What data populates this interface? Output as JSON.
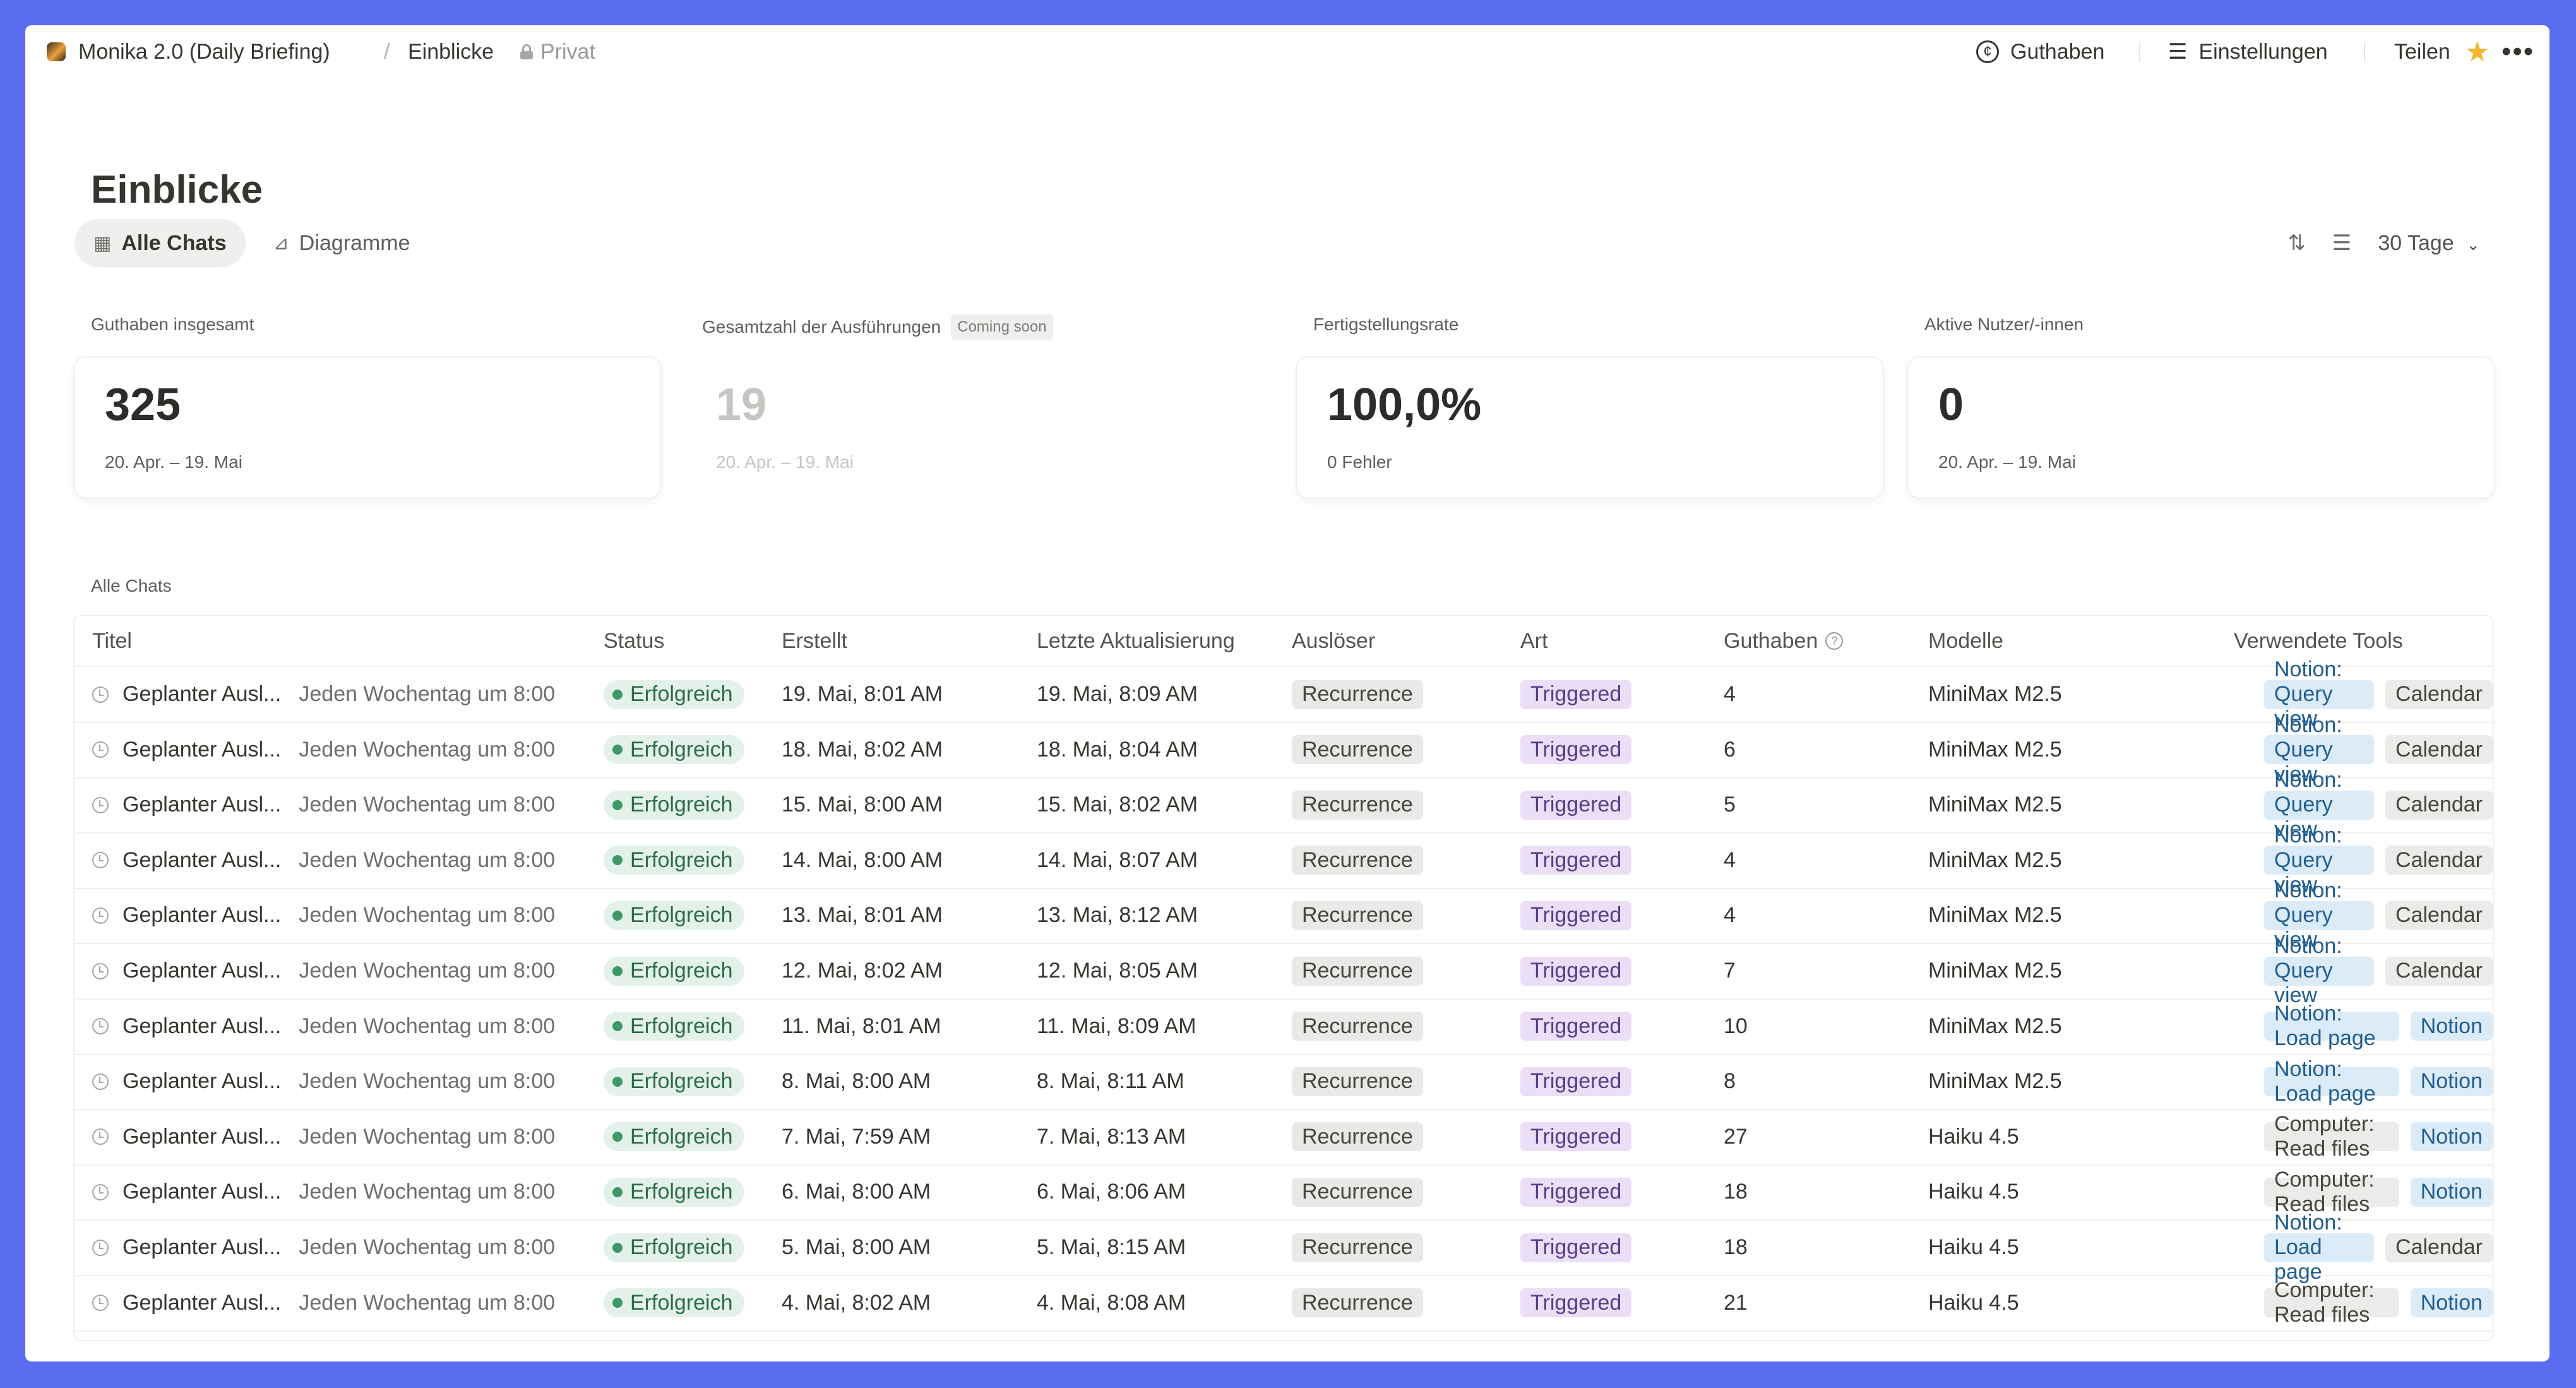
{
  "topbar": {
    "workspace": "Monika 2.0 (Daily Briefing)",
    "separator": "/",
    "page": "Einblicke",
    "privacy": "Privat",
    "credits": "Guthaben",
    "settings": "Einstellungen",
    "share": "Teilen"
  },
  "title": "Einblicke",
  "tabs": {
    "all_chats": "Alle Chats",
    "charts": "Diagramme"
  },
  "range": "30 Tage",
  "stats": {
    "credits": {
      "label": "Guthaben insgesamt",
      "value": "325",
      "sub": "20. Apr. – 19. Mai"
    },
    "runs": {
      "label": "Gesamtzahl der Ausführungen",
      "badge": "Coming soon",
      "value": "19",
      "sub": "20. Apr. – 19. Mai"
    },
    "completion": {
      "label": "Fertigstellungsrate",
      "value": "100,0%",
      "sub": "0 Fehler"
    },
    "users": {
      "label": "Aktive Nutzer/-innen",
      "value": "0",
      "sub": "20. Apr. – 19. Mai"
    }
  },
  "section_label": "Alle Chats",
  "columns": {
    "title": "Titel",
    "status": "Status",
    "created": "Erstellt",
    "updated": "Letzte Aktualisierung",
    "trigger": "Auslöser",
    "type": "Art",
    "credits": "Guthaben",
    "models": "Modelle",
    "tools": "Verwendete Tools"
  },
  "rows": [
    {
      "title": "Geplanter Ausl...",
      "desc": "Jeden Wochentag um 8:00",
      "status": "Erfolgreich",
      "created": "19. Mai, 8:01 AM",
      "updated": "19. Mai, 8:09 AM",
      "trigger": "Recurrence",
      "type": "Triggered",
      "credits": "4",
      "model": "MiniMax M2.5",
      "tool1": "Notion: Query view",
      "tool1_color": "blue",
      "tool2": "Calendar"
    },
    {
      "title": "Geplanter Ausl...",
      "desc": "Jeden Wochentag um 8:00",
      "status": "Erfolgreich",
      "created": "18. Mai, 8:02 AM",
      "updated": "18. Mai, 8:04 AM",
      "trigger": "Recurrence",
      "type": "Triggered",
      "credits": "6",
      "model": "MiniMax M2.5",
      "tool1": "Notion: Query view",
      "tool1_color": "blue",
      "tool2": "Calendar"
    },
    {
      "title": "Geplanter Ausl...",
      "desc": "Jeden Wochentag um 8:00",
      "status": "Erfolgreich",
      "created": "15. Mai, 8:00 AM",
      "updated": "15. Mai, 8:02 AM",
      "trigger": "Recurrence",
      "type": "Triggered",
      "credits": "5",
      "model": "MiniMax M2.5",
      "tool1": "Notion: Query view",
      "tool1_color": "blue",
      "tool2": "Calendar"
    },
    {
      "title": "Geplanter Ausl...",
      "desc": "Jeden Wochentag um 8:00",
      "status": "Erfolgreich",
      "created": "14. Mai, 8:00 AM",
      "updated": "14. Mai, 8:07 AM",
      "trigger": "Recurrence",
      "type": "Triggered",
      "credits": "4",
      "model": "MiniMax M2.5",
      "tool1": "Notion: Query view",
      "tool1_color": "blue",
      "tool2": "Calendar"
    },
    {
      "title": "Geplanter Ausl...",
      "desc": "Jeden Wochentag um 8:00",
      "status": "Erfolgreich",
      "created": "13. Mai, 8:01 AM",
      "updated": "13. Mai, 8:12 AM",
      "trigger": "Recurrence",
      "type": "Triggered",
      "credits": "4",
      "model": "MiniMax M2.5",
      "tool1": "Notion: Query view",
      "tool1_color": "blue",
      "tool2": "Calendar"
    },
    {
      "title": "Geplanter Ausl...",
      "desc": "Jeden Wochentag um 8:00",
      "status": "Erfolgreich",
      "created": "12. Mai, 8:02 AM",
      "updated": "12. Mai, 8:05 AM",
      "trigger": "Recurrence",
      "type": "Triggered",
      "credits": "7",
      "model": "MiniMax M2.5",
      "tool1": "Notion: Query view",
      "tool1_color": "blue",
      "tool2": "Calendar"
    },
    {
      "title": "Geplanter Ausl...",
      "desc": "Jeden Wochentag um 8:00",
      "status": "Erfolgreich",
      "created": "11. Mai, 8:01 AM",
      "updated": "11. Mai, 8:09 AM",
      "trigger": "Recurrence",
      "type": "Triggered",
      "credits": "10",
      "model": "MiniMax M2.5",
      "tool1": "Notion: Load page",
      "tool1_color": "blue",
      "tool2": "Notion"
    },
    {
      "title": "Geplanter Ausl...",
      "desc": "Jeden Wochentag um 8:00",
      "status": "Erfolgreich",
      "created": "8. Mai, 8:00 AM",
      "updated": "8. Mai, 8:11 AM",
      "trigger": "Recurrence",
      "type": "Triggered",
      "credits": "8",
      "model": "MiniMax M2.5",
      "tool1": "Notion: Load page",
      "tool1_color": "blue",
      "tool2": "Notion"
    },
    {
      "title": "Geplanter Ausl...",
      "desc": "Jeden Wochentag um 8:00",
      "status": "Erfolgreich",
      "created": "7. Mai, 7:59 AM",
      "updated": "7. Mai, 8:13 AM",
      "trigger": "Recurrence",
      "type": "Triggered",
      "credits": "27",
      "model": "Haiku 4.5",
      "tool1": "Computer: Read files",
      "tool1_color": "gray",
      "tool2": "Notion"
    },
    {
      "title": "Geplanter Ausl...",
      "desc": "Jeden Wochentag um 8:00",
      "status": "Erfolgreich",
      "created": "6. Mai, 8:00 AM",
      "updated": "6. Mai, 8:06 AM",
      "trigger": "Recurrence",
      "type": "Triggered",
      "credits": "18",
      "model": "Haiku 4.5",
      "tool1": "Computer: Read files",
      "tool1_color": "gray",
      "tool2": "Notion"
    },
    {
      "title": "Geplanter Ausl...",
      "desc": "Jeden Wochentag um 8:00",
      "status": "Erfolgreich",
      "created": "5. Mai, 8:00 AM",
      "updated": "5. Mai, 8:15 AM",
      "trigger": "Recurrence",
      "type": "Triggered",
      "credits": "18",
      "model": "Haiku 4.5",
      "tool1": "Notion: Load page",
      "tool1_color": "blue",
      "tool2": "Calendar"
    },
    {
      "title": "Geplanter Ausl...",
      "desc": "Jeden Wochentag um 8:00",
      "status": "Erfolgreich",
      "created": "4. Mai, 8:02 AM",
      "updated": "4. Mai, 8:08 AM",
      "trigger": "Recurrence",
      "type": "Triggered",
      "credits": "21",
      "model": "Haiku 4.5",
      "tool1": "Computer: Read files",
      "tool1_color": "gray",
      "tool2": "Notion"
    }
  ]
}
